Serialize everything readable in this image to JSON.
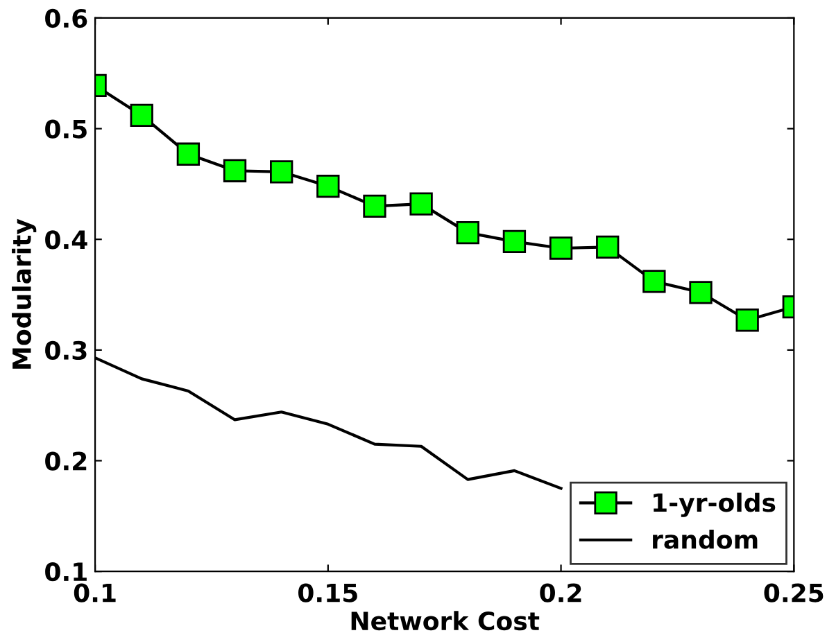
{
  "chart_data": {
    "type": "line",
    "xlabel": "Network Cost",
    "ylabel": "Modularity",
    "x": [
      0.1,
      0.11,
      0.12,
      0.13,
      0.14,
      0.15,
      0.16,
      0.17,
      0.18,
      0.19,
      0.2,
      0.21,
      0.22,
      0.23,
      0.24,
      0.25
    ],
    "series": [
      {
        "name": "1-yr-olds",
        "color": "#00ff00",
        "marker": "square",
        "values": [
          0.539,
          0.512,
          0.477,
          0.462,
          0.461,
          0.448,
          0.43,
          0.432,
          0.406,
          0.398,
          0.392,
          0.393,
          0.362,
          0.352,
          0.327,
          0.339
        ]
      },
      {
        "name": "random",
        "color": "#000000",
        "marker": "none",
        "values": [
          0.293,
          0.274,
          0.263,
          0.237,
          0.244,
          0.233,
          0.215,
          0.213,
          0.183,
          0.191,
          0.175,
          null,
          null,
          null,
          null,
          null
        ]
      }
    ],
    "xlim": [
      0.1,
      0.25
    ],
    "xticks": [
      0.1,
      0.15,
      0.2,
      0.25
    ],
    "ylim": [
      0.1,
      0.6
    ],
    "yticks": [
      0.1,
      0.2,
      0.3,
      0.4,
      0.5,
      0.6
    ],
    "grid": false,
    "legend": "bottom right",
    "line_style": "solid"
  }
}
